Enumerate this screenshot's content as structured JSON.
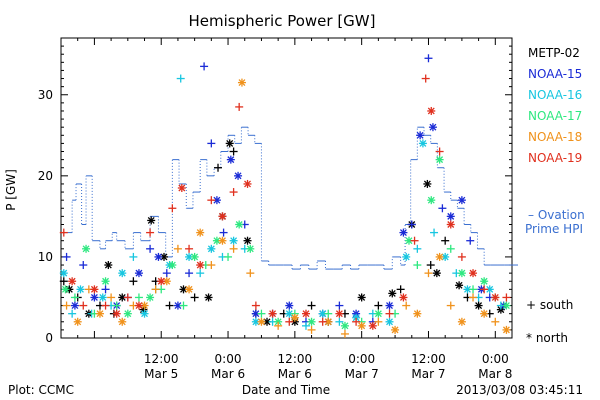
{
  "chart_data": {
    "type": "scatter",
    "title": "Hemispheric Power [GW]",
    "xlabel": "Date and Time",
    "ylabel": "P [GW]",
    "ylim": [
      0,
      37
    ],
    "xlim_hours": [
      0,
      81
    ],
    "yticks": [
      0,
      10,
      20,
      30
    ],
    "xticks": [
      {
        "hour": 18,
        "time": "12:00",
        "date": "Mar 5"
      },
      {
        "hour": 30,
        "time": "0:00",
        "date": "Mar 6"
      },
      {
        "hour": 42,
        "time": "12:00",
        "date": "Mar 6"
      },
      {
        "hour": 54,
        "time": "0:00",
        "date": "Mar 7"
      },
      {
        "hour": 66,
        "time": "12:00",
        "date": "Mar 7"
      },
      {
        "hour": 78,
        "time": "0:00",
        "date": "Mar 8"
      }
    ],
    "grid": false,
    "legend_position": "right",
    "series": [
      {
        "name": "METP-02",
        "color": "#000000"
      },
      {
        "name": "NOAA-15",
        "color": "#1a2bd6"
      },
      {
        "name": "NOAA-16",
        "color": "#18c6e0"
      },
      {
        "name": "NOAA-17",
        "color": "#2ee880"
      },
      {
        "name": "NOAA-18",
        "color": "#f0921c"
      },
      {
        "name": "NOAA-19",
        "color": "#e0301e"
      }
    ],
    "ovation": {
      "name": "Ovation Prime HPI",
      "color": "#3a6fd0",
      "points": [
        [
          0.5,
          13
        ],
        [
          2,
          17
        ],
        [
          2.7,
          19
        ],
        [
          3.7,
          14
        ],
        [
          4.5,
          20
        ],
        [
          5.6,
          12
        ],
        [
          7,
          11
        ],
        [
          8,
          12
        ],
        [
          9.2,
          13
        ],
        [
          10,
          12
        ],
        [
          11.5,
          11
        ],
        [
          13,
          13
        ],
        [
          14.3,
          12
        ],
        [
          16,
          15
        ],
        [
          17.5,
          13
        ],
        [
          18.8,
          10
        ],
        [
          20,
          22
        ],
        [
          21.2,
          19
        ],
        [
          22.5,
          16
        ],
        [
          23.7,
          18
        ],
        [
          25,
          22
        ],
        [
          26.2,
          20
        ],
        [
          27.5,
          21
        ],
        [
          28.7,
          23
        ],
        [
          30,
          25
        ],
        [
          31.2,
          24
        ],
        [
          32.4,
          26
        ],
        [
          33.6,
          25
        ],
        [
          34.8,
          24
        ],
        [
          36,
          9.5
        ],
        [
          37.3,
          9
        ],
        [
          38.6,
          9
        ],
        [
          40,
          9
        ],
        [
          41.5,
          8.5
        ],
        [
          43,
          9
        ],
        [
          44.5,
          8.5
        ],
        [
          46,
          9.5
        ],
        [
          47.5,
          8.5
        ],
        [
          49,
          8.5
        ],
        [
          50.5,
          9
        ],
        [
          52,
          8.5
        ],
        [
          53.5,
          9
        ],
        [
          55,
          9
        ],
        [
          56.5,
          9
        ],
        [
          58,
          8.5
        ],
        [
          59.5,
          10
        ],
        [
          61,
          9
        ],
        [
          61.8,
          14
        ],
        [
          62.8,
          22
        ],
        [
          64,
          26
        ],
        [
          65.2,
          25
        ],
        [
          66.4,
          24
        ],
        [
          67.6,
          21
        ],
        [
          68.8,
          18
        ],
        [
          70,
          17
        ],
        [
          71.2,
          16
        ],
        [
          72.4,
          14
        ],
        [
          73.6,
          13
        ],
        [
          74.8,
          11
        ],
        [
          76,
          9
        ],
        [
          77.2,
          9
        ],
        [
          78.4,
          9
        ],
        [
          79.6,
          9
        ],
        [
          81,
          9
        ]
      ]
    },
    "points": [
      [
        0,
        0.5,
        7,
        "+"
      ],
      [
        0,
        1.5,
        6,
        "*"
      ],
      [
        0,
        3,
        5,
        "+"
      ],
      [
        0,
        5,
        3,
        "*"
      ],
      [
        0,
        7,
        4,
        "+"
      ],
      [
        0,
        8.5,
        9,
        "*"
      ],
      [
        0,
        9.5,
        3,
        "+"
      ],
      [
        0,
        11,
        5,
        "*"
      ],
      [
        0,
        13,
        7,
        "+"
      ],
      [
        0,
        14.8,
        3.5,
        "*"
      ],
      [
        0,
        16.2,
        14.5,
        "*"
      ],
      [
        0,
        17,
        7,
        "+"
      ],
      [
        0,
        18.5,
        10,
        "*"
      ],
      [
        0,
        19.5,
        4,
        "+"
      ],
      [
        0,
        22,
        6,
        "*"
      ],
      [
        0,
        24,
        5,
        "+"
      ],
      [
        0,
        26.5,
        5,
        "*"
      ],
      [
        0,
        28.2,
        21,
        "+"
      ],
      [
        0,
        29,
        15,
        "*"
      ],
      [
        0,
        30.3,
        24,
        "*"
      ],
      [
        0,
        31,
        23,
        "+"
      ],
      [
        0,
        33.5,
        12,
        "*"
      ],
      [
        0,
        35,
        3,
        "+"
      ],
      [
        0,
        37,
        2,
        "*"
      ],
      [
        0,
        40,
        3,
        "+"
      ],
      [
        0,
        42,
        2,
        "*"
      ],
      [
        0,
        45,
        4,
        "+"
      ],
      [
        0,
        48,
        2,
        "*"
      ],
      [
        0,
        51,
        3,
        "+"
      ],
      [
        0,
        54,
        5,
        "*"
      ],
      [
        0,
        57,
        4,
        "+"
      ],
      [
        0,
        59.5,
        5.5,
        "*"
      ],
      [
        0,
        61,
        6,
        "+"
      ],
      [
        0,
        63,
        14,
        "*"
      ],
      [
        0,
        65.8,
        19,
        "*"
      ],
      [
        0,
        66.4,
        9,
        "+"
      ],
      [
        0,
        67.5,
        8,
        "*"
      ],
      [
        0,
        69,
        12,
        "+"
      ],
      [
        0,
        71.5,
        6.5,
        "*"
      ],
      [
        0,
        73,
        5,
        "+"
      ],
      [
        0,
        75,
        4,
        "*"
      ],
      [
        0,
        77,
        3,
        "+"
      ],
      [
        0,
        79,
        3.5,
        "*"
      ],
      [
        1,
        1,
        10,
        "+"
      ],
      [
        1,
        2.5,
        4,
        "*"
      ],
      [
        1,
        4,
        9,
        "+"
      ],
      [
        1,
        6,
        5,
        "*"
      ],
      [
        1,
        8,
        6,
        "+"
      ],
      [
        1,
        10,
        4,
        "*"
      ],
      [
        1,
        12,
        5,
        "+"
      ],
      [
        1,
        14,
        8,
        "*"
      ],
      [
        1,
        16,
        11,
        "+"
      ],
      [
        1,
        17.5,
        10,
        "*"
      ],
      [
        1,
        19,
        8,
        "+"
      ],
      [
        1,
        21,
        4,
        "*"
      ],
      [
        1,
        23,
        8,
        "+"
      ],
      [
        1,
        25.7,
        33.5,
        "+"
      ],
      [
        1,
        27,
        24,
        "+"
      ],
      [
        1,
        28,
        17,
        "*"
      ],
      [
        1,
        29.2,
        13,
        "+"
      ],
      [
        1,
        30.5,
        22,
        "*"
      ],
      [
        1,
        31.8,
        20,
        "*"
      ],
      [
        1,
        33,
        14,
        "+"
      ],
      [
        1,
        35,
        3,
        "*"
      ],
      [
        1,
        38,
        3,
        "+"
      ],
      [
        1,
        41,
        4,
        "*"
      ],
      [
        1,
        44,
        2,
        "+"
      ],
      [
        1,
        47,
        3,
        "*"
      ],
      [
        1,
        50,
        4,
        "+"
      ],
      [
        1,
        53,
        3,
        "*"
      ],
      [
        1,
        56,
        2,
        "+"
      ],
      [
        1,
        59,
        4,
        "*"
      ],
      [
        1,
        61.5,
        13,
        "*"
      ],
      [
        1,
        63,
        14,
        "+"
      ],
      [
        1,
        64.5,
        25,
        "*"
      ],
      [
        1,
        66,
        34.5,
        "+"
      ],
      [
        1,
        66.8,
        26,
        "*"
      ],
      [
        1,
        68.5,
        16,
        "+"
      ],
      [
        1,
        70,
        15,
        "*"
      ],
      [
        1,
        72,
        17,
        "*"
      ],
      [
        1,
        73.5,
        12,
        "+"
      ],
      [
        1,
        75.5,
        6,
        "*"
      ],
      [
        1,
        77,
        5,
        "+"
      ],
      [
        1,
        79.5,
        4,
        "*"
      ],
      [
        2,
        0.5,
        8,
        "*"
      ],
      [
        2,
        2,
        3,
        "+"
      ],
      [
        2,
        3.5,
        6,
        "*"
      ],
      [
        2,
        5.5,
        3,
        "+"
      ],
      [
        2,
        7.5,
        5,
        "*"
      ],
      [
        2,
        9,
        4,
        "+"
      ],
      [
        2,
        11,
        8,
        "*"
      ],
      [
        2,
        13,
        10,
        "+"
      ],
      [
        2,
        15,
        3,
        "*"
      ],
      [
        2,
        17,
        6,
        "+"
      ],
      [
        2,
        19.5,
        9,
        "*"
      ],
      [
        2,
        21.5,
        32,
        "+"
      ],
      [
        2,
        23,
        10,
        "*"
      ],
      [
        2,
        25,
        8,
        "+"
      ],
      [
        2,
        27,
        11,
        "*"
      ],
      [
        2,
        29,
        10,
        "+"
      ],
      [
        2,
        31,
        12,
        "*"
      ],
      [
        2,
        33,
        11,
        "+"
      ],
      [
        2,
        35,
        2,
        "*"
      ],
      [
        2,
        38,
        2,
        "+"
      ],
      [
        2,
        41,
        3,
        "*"
      ],
      [
        2,
        44,
        1.5,
        "+"
      ],
      [
        2,
        47,
        3,
        "*"
      ],
      [
        2,
        50,
        2,
        "+"
      ],
      [
        2,
        53,
        2.5,
        "*"
      ],
      [
        2,
        56,
        3,
        "+"
      ],
      [
        2,
        59,
        2,
        "*"
      ],
      [
        2,
        62,
        10,
        "*"
      ],
      [
        2,
        64,
        11,
        "+"
      ],
      [
        2,
        65,
        24,
        "*"
      ],
      [
        2,
        67,
        13,
        "+"
      ],
      [
        2,
        69,
        10,
        "*"
      ],
      [
        2,
        71,
        8,
        "+"
      ],
      [
        2,
        73,
        6,
        "*"
      ],
      [
        2,
        75,
        5,
        "+"
      ],
      [
        2,
        77,
        6,
        "*"
      ],
      [
        2,
        79,
        4,
        "+"
      ],
      [
        3,
        0.8,
        6,
        "*"
      ],
      [
        3,
        2.5,
        5,
        "+"
      ],
      [
        3,
        4.5,
        11,
        "*"
      ],
      [
        3,
        6,
        3,
        "+"
      ],
      [
        3,
        8,
        7,
        "*"
      ],
      [
        3,
        10,
        4,
        "+"
      ],
      [
        3,
        12,
        3,
        "*"
      ],
      [
        3,
        14,
        5,
        "+"
      ],
      [
        3,
        16,
        5,
        "*"
      ],
      [
        3,
        18,
        6,
        "+"
      ],
      [
        3,
        20,
        9,
        "*"
      ],
      [
        3,
        22,
        4,
        "+"
      ],
      [
        3,
        24,
        10,
        "*"
      ],
      [
        3,
        26,
        9,
        "+"
      ],
      [
        3,
        28,
        12,
        "*"
      ],
      [
        3,
        30,
        10,
        "+"
      ],
      [
        3,
        32,
        14,
        "*"
      ],
      [
        3,
        34,
        11,
        "*"
      ],
      [
        3,
        36,
        3,
        "+"
      ],
      [
        3,
        39,
        2,
        "*"
      ],
      [
        3,
        42,
        3,
        "+"
      ],
      [
        3,
        45,
        2,
        "*"
      ],
      [
        3,
        48,
        3,
        "+"
      ],
      [
        3,
        51,
        1.5,
        "*"
      ],
      [
        3,
        54,
        2,
        "+"
      ],
      [
        3,
        57,
        3,
        "*"
      ],
      [
        3,
        60,
        3,
        "+"
      ],
      [
        3,
        62.5,
        12,
        "*"
      ],
      [
        3,
        64,
        9,
        "+"
      ],
      [
        3,
        66.5,
        17,
        "*"
      ],
      [
        3,
        68,
        22,
        "*"
      ],
      [
        3,
        70,
        11,
        "+"
      ],
      [
        3,
        72,
        8,
        "*"
      ],
      [
        3,
        74,
        6,
        "+"
      ],
      [
        3,
        76,
        7,
        "*"
      ],
      [
        3,
        78,
        5,
        "+"
      ],
      [
        3,
        80,
        4,
        "*"
      ],
      [
        4,
        1,
        4,
        "+"
      ],
      [
        4,
        3,
        2,
        "*"
      ],
      [
        4,
        5,
        6,
        "+"
      ],
      [
        4,
        7,
        3,
        "*"
      ],
      [
        4,
        9,
        5,
        "+"
      ],
      [
        4,
        11,
        2,
        "*"
      ],
      [
        4,
        13,
        4,
        "+"
      ],
      [
        4,
        15,
        4,
        "*"
      ],
      [
        4,
        17,
        6,
        "+"
      ],
      [
        4,
        19,
        7,
        "*"
      ],
      [
        4,
        21,
        11,
        "+"
      ],
      [
        4,
        23,
        6,
        "*"
      ],
      [
        4,
        25,
        13,
        "*"
      ],
      [
        4,
        27,
        9,
        "+"
      ],
      [
        4,
        29,
        12,
        "*"
      ],
      [
        4,
        31,
        11,
        "+"
      ],
      [
        4,
        32.5,
        31.5,
        "*"
      ],
      [
        4,
        34,
        8,
        "+"
      ],
      [
        4,
        36,
        2,
        "*"
      ],
      [
        4,
        39,
        1.5,
        "+"
      ],
      [
        4,
        42,
        2.5,
        "*"
      ],
      [
        4,
        45,
        1,
        "+"
      ],
      [
        4,
        48,
        2,
        "*"
      ],
      [
        4,
        51,
        0.5,
        "+"
      ],
      [
        4,
        54,
        1.5,
        "*"
      ],
      [
        4,
        57,
        2,
        "+"
      ],
      [
        4,
        60,
        1,
        "*"
      ],
      [
        4,
        62,
        4,
        "+"
      ],
      [
        4,
        64,
        3,
        "*"
      ],
      [
        4,
        66,
        8,
        "+"
      ],
      [
        4,
        68,
        10,
        "*"
      ],
      [
        4,
        70,
        4,
        "+"
      ],
      [
        4,
        72,
        2,
        "*"
      ],
      [
        4,
        74,
        5,
        "+"
      ],
      [
        4,
        76,
        3,
        "*"
      ],
      [
        4,
        78,
        2,
        "+"
      ],
      [
        4,
        80,
        1,
        "*"
      ],
      [
        5,
        0.5,
        13,
        "+"
      ],
      [
        5,
        2,
        7,
        "*"
      ],
      [
        5,
        4,
        4,
        "+"
      ],
      [
        5,
        6,
        6,
        "*"
      ],
      [
        5,
        8,
        4,
        "+"
      ],
      [
        5,
        10,
        3,
        "*"
      ],
      [
        5,
        12,
        5,
        "+"
      ],
      [
        5,
        14,
        4,
        "*"
      ],
      [
        5,
        16,
        13,
        "+"
      ],
      [
        5,
        18,
        7,
        "*"
      ],
      [
        5,
        20,
        16,
        "+"
      ],
      [
        5,
        21.7,
        18.5,
        "*"
      ],
      [
        5,
        23,
        11,
        "+"
      ],
      [
        5,
        25,
        9,
        "*"
      ],
      [
        5,
        27,
        17,
        "+"
      ],
      [
        5,
        29,
        15,
        "*"
      ],
      [
        5,
        31,
        18,
        "+"
      ],
      [
        5,
        32,
        28.5,
        "+"
      ],
      [
        5,
        33.5,
        19,
        "*"
      ],
      [
        5,
        35,
        4,
        "+"
      ],
      [
        5,
        38,
        3,
        "*"
      ],
      [
        5,
        41,
        2,
        "+"
      ],
      [
        5,
        44,
        3,
        "*"
      ],
      [
        5,
        47,
        2,
        "+"
      ],
      [
        5,
        50,
        3,
        "*"
      ],
      [
        5,
        53,
        2,
        "+"
      ],
      [
        5,
        56,
        1.5,
        "*"
      ],
      [
        5,
        59,
        3,
        "+"
      ],
      [
        5,
        61.5,
        5,
        "*"
      ],
      [
        5,
        63.5,
        12,
        "+"
      ],
      [
        5,
        65.5,
        32,
        "+"
      ],
      [
        5,
        66.5,
        28,
        "*"
      ],
      [
        5,
        68,
        23,
        "+"
      ],
      [
        5,
        70,
        14,
        "*"
      ],
      [
        5,
        72,
        10,
        "+"
      ],
      [
        5,
        74,
        8,
        "*"
      ],
      [
        5,
        76,
        6,
        "+"
      ],
      [
        5,
        78,
        5,
        "*"
      ],
      [
        5,
        80,
        5,
        "+"
      ]
    ]
  },
  "legend_extra": {
    "ovation_line1": "– Ovation",
    "ovation_line2": "Prime HPI",
    "south": "+ south",
    "north": "* north"
  },
  "footer": {
    "plot_by": "Plot: CCMC",
    "xlabel": "Date and Time",
    "timestamp": "2013/03/08 03:45:11"
  }
}
